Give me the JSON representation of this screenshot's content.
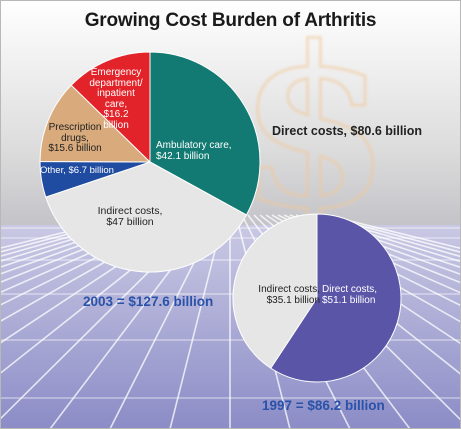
{
  "chart_data": [
    {
      "type": "pie",
      "title": "Growing Cost Burden of Arthritis",
      "caption": "2003 = $127.6 billion",
      "total": 127.6,
      "direct_costs_label": "Direct costs, $80.6 billion",
      "slices": [
        {
          "label_lines": [
            "Ambulatory care,",
            "$42.1 billion"
          ],
          "value": 42.1,
          "color": "#127a72"
        },
        {
          "label_lines": [
            "Indirect costs,",
            "$47 billion"
          ],
          "value": 47.0,
          "color": "#e6e6e6"
        },
        {
          "label_lines": [
            "Other, $6.7 billion"
          ],
          "value": 6.7,
          "color": "#1f4ba0"
        },
        {
          "label_lines": [
            "Prescription",
            "drugs,",
            "$15.6 billion"
          ],
          "value": 15.6,
          "color": "#d9ab7c"
        },
        {
          "label_lines": [
            "Emergency",
            "department/",
            "inpatient",
            "care,",
            "$16.2",
            "billion"
          ],
          "value": 16.2,
          "color": "#e3232a"
        }
      ]
    },
    {
      "type": "pie",
      "caption": "1997 = $86.2 billion",
      "total": 86.2,
      "slices": [
        {
          "label_lines": [
            "Direct costs,",
            "$51.1 billion"
          ],
          "value": 51.1,
          "color": "#5b55a8"
        },
        {
          "label_lines": [
            "Indirect costs,",
            "$35.1 billion"
          ],
          "value": 35.1,
          "color": "#e6e6e6"
        }
      ]
    }
  ]
}
